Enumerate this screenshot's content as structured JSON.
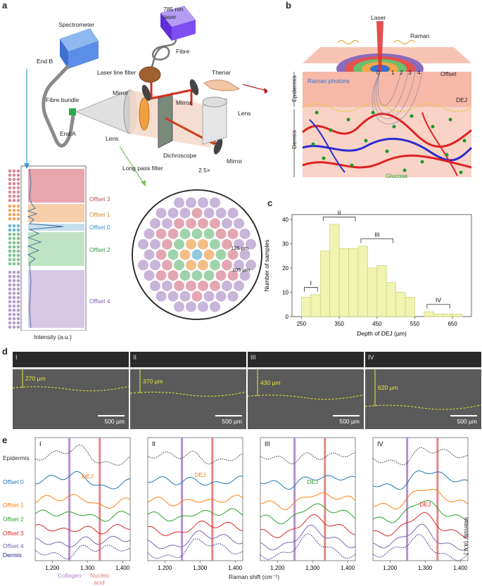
{
  "panels": {
    "a": {
      "letter": "a",
      "labels": {
        "spectrometer": "Spectrometer",
        "end_b": "End B",
        "laser": "785 nm\nlaser",
        "laser_line1": "785 nm",
        "laser_line2": "laser",
        "fibre": "Fibre",
        "laser_line_filter": "Laser line filter",
        "mirror1": "Mirror",
        "mirror2": "Mirror",
        "mirror3": "Mirror",
        "thenar": "Thenar",
        "lens_right": "Lens",
        "fibre_bundle": "Fibre bundle",
        "end_a": "End A",
        "lens": "Lens",
        "long_pass_filter": "Long pass filter",
        "dichroscope": "Dichroscope",
        "mag": "2.5×"
      },
      "spectrum": {
        "offsets": [
          "Offset 3",
          "Offset 1",
          "Offset 0",
          "Offset 2",
          "Offset 4"
        ],
        "colors": [
          "#d9899a",
          "#f0a75e",
          "#6fb4d6",
          "#7fc48f",
          "#b59ccc"
        ],
        "xlabel": "Intensity (a.u.)"
      },
      "bundle": {
        "label_125": "125 µm",
        "label_105": "105 µm"
      }
    },
    "b": {
      "letter": "b",
      "labels": {
        "laser": "Laser",
        "raman": "Raman",
        "offset": "Offset",
        "offset_nums": [
          "0",
          "1",
          "2",
          "3",
          "4"
        ],
        "raman_photons": "Raman photons",
        "epidermis": "Epidermis",
        "dej": "DEJ",
        "dermis": "Dermis",
        "glucose": "Glucose"
      }
    },
    "c": {
      "letter": "c",
      "groups": [
        "I",
        "II",
        "III",
        "IV"
      ]
    },
    "d": {
      "letter": "d",
      "images": [
        {
          "roman": "I",
          "depth": "270 µm",
          "scale": "500 µm"
        },
        {
          "roman": "II",
          "depth": "370 µm",
          "scale": "500 µm"
        },
        {
          "roman": "III",
          "depth": "430 µm",
          "scale": "500 µm"
        },
        {
          "roman": "IV",
          "depth": "620 µm",
          "scale": "500 µm"
        }
      ]
    },
    "e": {
      "letter": "e",
      "row_labels": [
        {
          "text": "Epidermis",
          "color": "#333333"
        },
        {
          "text": "Offset 0",
          "color": "#1f77b4"
        },
        {
          "text": "Offset 1",
          "color": "#ff7f0e"
        },
        {
          "text": "Offset 2",
          "color": "#2ca02c"
        },
        {
          "text": "Offset 3",
          "color": "#d62728"
        },
        {
          "text": "Offset 4",
          "color": "#7b68ae"
        },
        {
          "text": "Dermis",
          "color": "#1a237e"
        }
      ],
      "subpanels": [
        "I",
        "II",
        "III",
        "IV"
      ],
      "dej_label": "DEJ",
      "xticks": [
        "1,200",
        "1,300",
        "1,400"
      ],
      "xlabel": "Raman shift (cm⁻¹)",
      "ylabel": "Intensity (a.u.)",
      "collagen": "Collagen",
      "nucleic_acid_1": "Nucleic",
      "nucleic_acid_2": "acid"
    }
  },
  "chart_data": {
    "type": "bar",
    "xlabel": "Depth of DEJ (µm)",
    "ylabel": "Number of samples",
    "xlim": [
      225,
      700
    ],
    "ylim": [
      0,
      42
    ],
    "xticks": [
      250,
      350,
      450,
      550,
      650
    ],
    "yticks": [
      0,
      10,
      20,
      30,
      40
    ],
    "bin_width": 25,
    "bin_starts": [
      250,
      275,
      300,
      325,
      350,
      375,
      400,
      425,
      450,
      475,
      500,
      525,
      575,
      600,
      625,
      650
    ],
    "values": [
      8,
      9,
      27,
      38,
      28,
      28,
      29,
      20,
      21,
      14,
      10,
      8,
      2,
      1,
      1,
      1
    ],
    "color": "#f0f4b0",
    "edge_color": "#c9cf77",
    "groups": [
      {
        "name": "I",
        "range": [
          250,
          300
        ]
      },
      {
        "name": "II",
        "range": [
          300,
          400
        ]
      },
      {
        "name": "III",
        "range": [
          400,
          500
        ]
      },
      {
        "name": "IV",
        "range": [
          575,
          650
        ]
      }
    ]
  }
}
